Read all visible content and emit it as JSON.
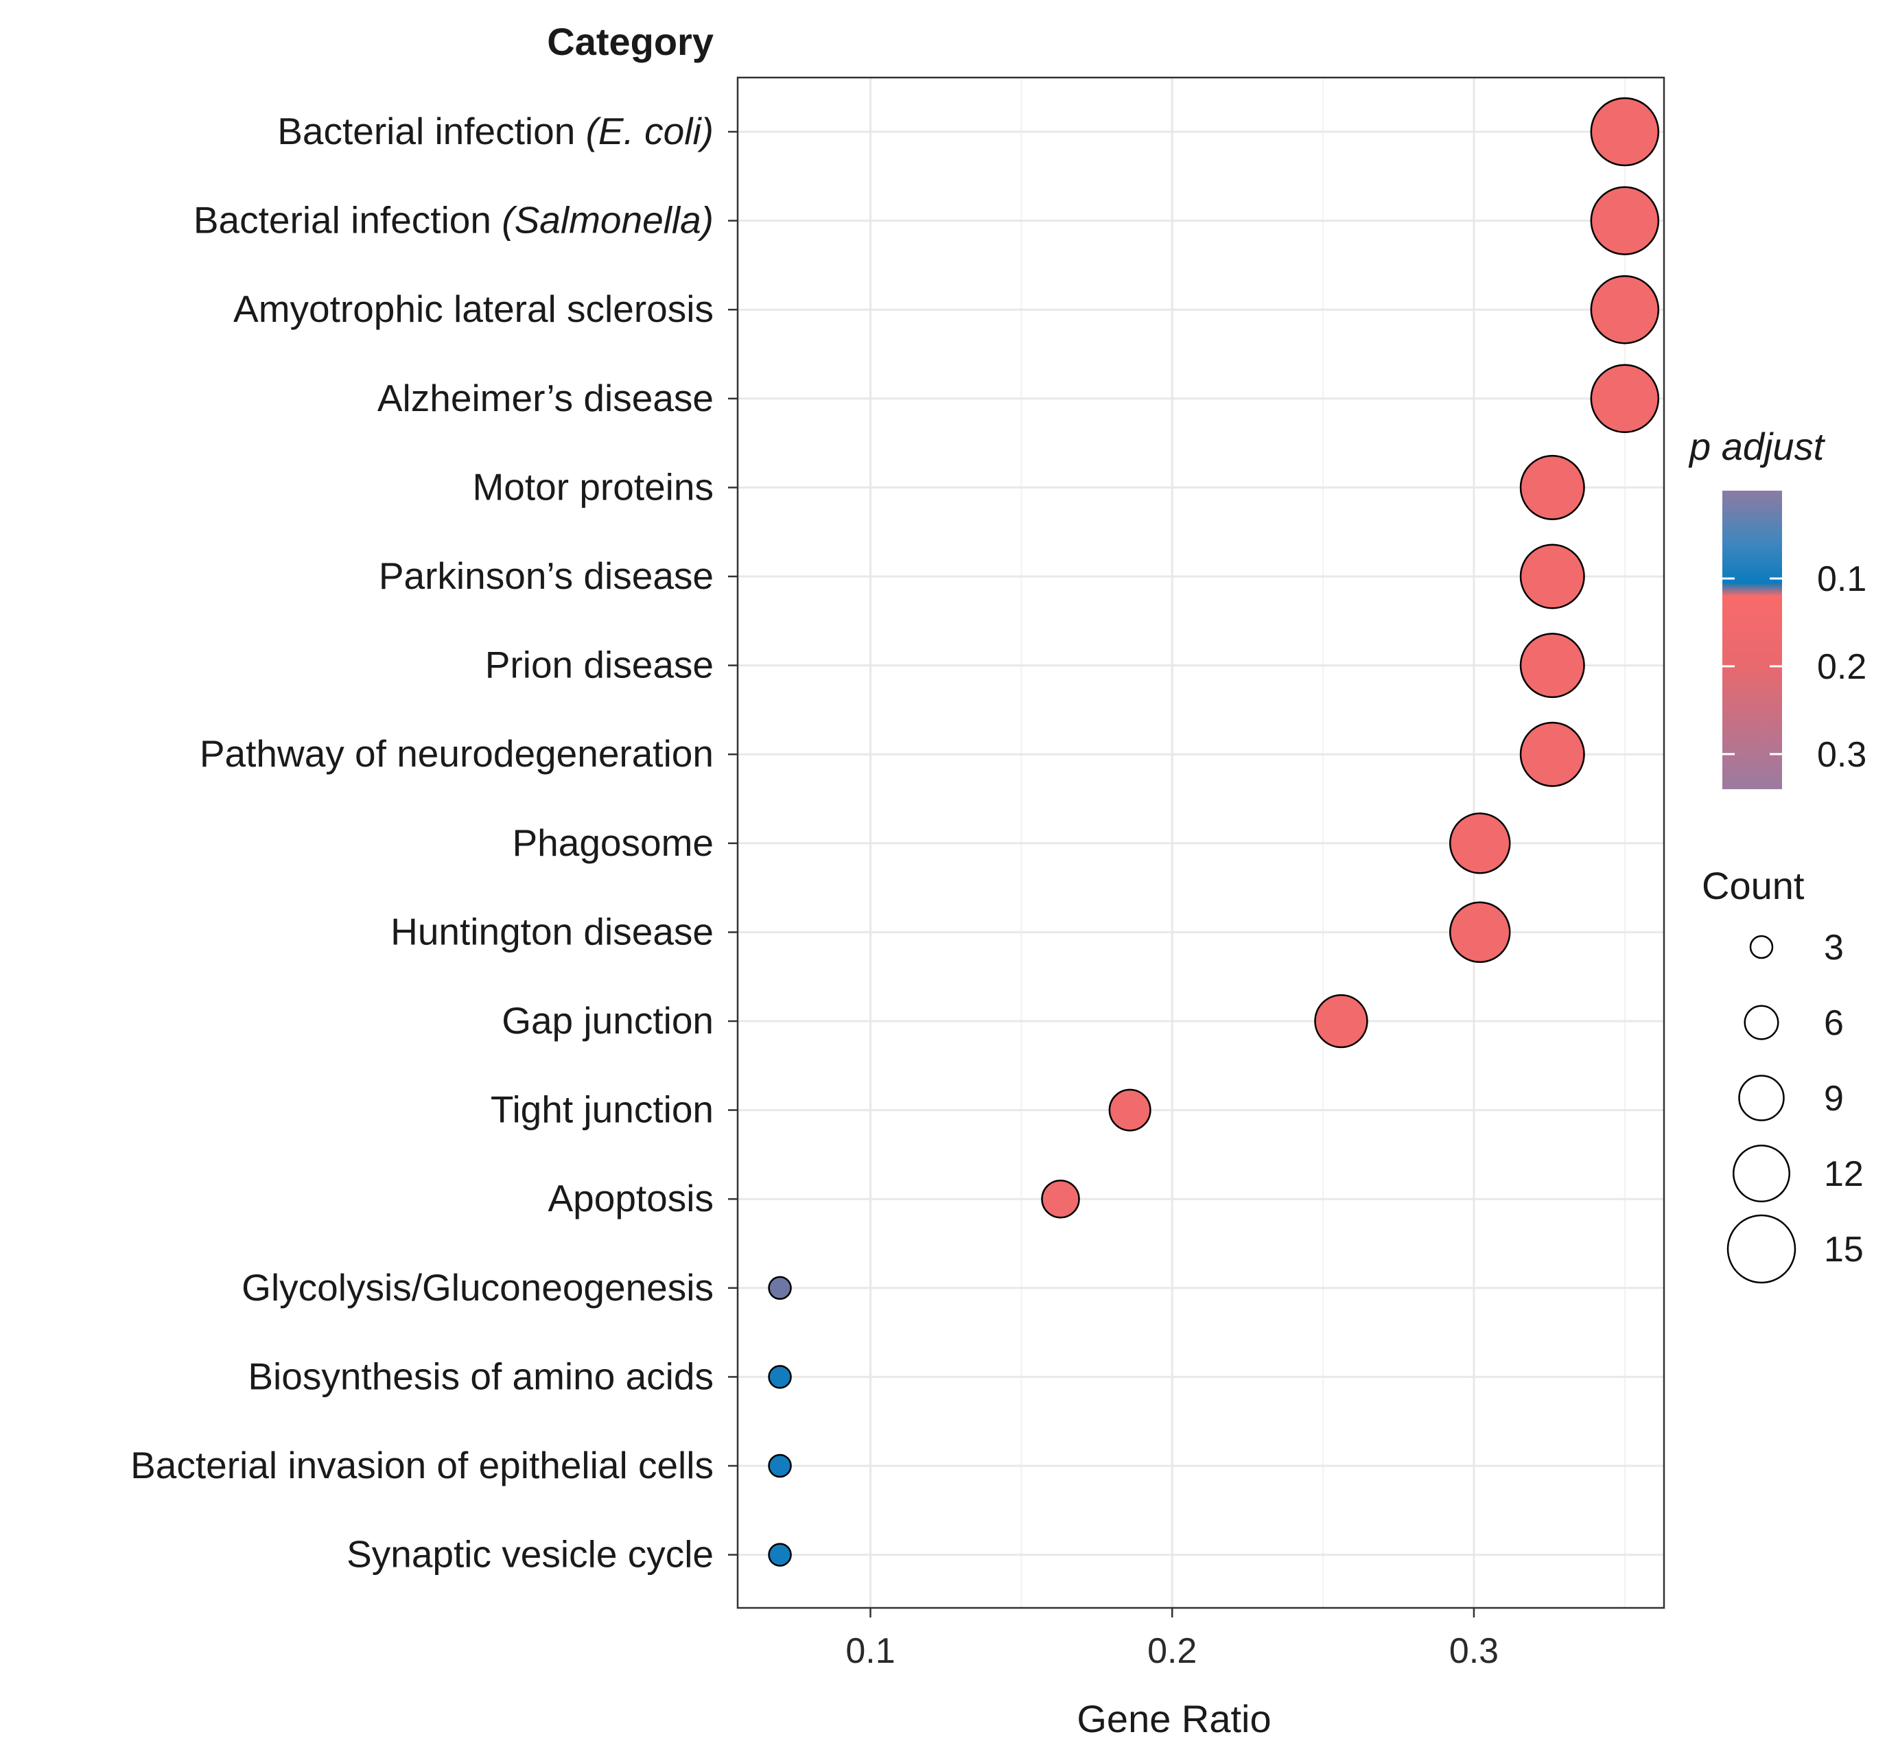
{
  "chart_data": {
    "type": "scatter",
    "subtype": "dot-plot",
    "y_title": "Category",
    "xlabel": "Gene Ratio",
    "xlim": [
      0.056,
      0.363
    ],
    "xticks": [
      0.1,
      0.2,
      0.3
    ],
    "xtick_labels": [
      "0.1",
      "0.2",
      "0.3"
    ],
    "grid": true,
    "legend_position": "right",
    "points": [
      {
        "category": "Bacterial infection",
        "italic_suffix": "(E. coli)",
        "gene_ratio": 0.35,
        "count": 15,
        "p_adjust": 0.16
      },
      {
        "category": "Bacterial infection",
        "italic_suffix": "(Salmonella)",
        "gene_ratio": 0.35,
        "count": 15,
        "p_adjust": 0.16
      },
      {
        "category": "Amyotrophic lateral sclerosis",
        "italic_suffix": "",
        "gene_ratio": 0.35,
        "count": 15,
        "p_adjust": 0.16
      },
      {
        "category": "Alzheimer’s disease",
        "italic_suffix": "",
        "gene_ratio": 0.35,
        "count": 15,
        "p_adjust": 0.16
      },
      {
        "category": "Motor proteins",
        "italic_suffix": "",
        "gene_ratio": 0.326,
        "count": 14,
        "p_adjust": 0.16
      },
      {
        "category": "Parkinson’s disease",
        "italic_suffix": "",
        "gene_ratio": 0.326,
        "count": 14,
        "p_adjust": 0.16
      },
      {
        "category": "Prion disease",
        "italic_suffix": "",
        "gene_ratio": 0.326,
        "count": 14,
        "p_adjust": 0.16
      },
      {
        "category": "Pathway of neurodegeneration",
        "italic_suffix": "",
        "gene_ratio": 0.326,
        "count": 14,
        "p_adjust": 0.16
      },
      {
        "category": "Phagosome",
        "italic_suffix": "",
        "gene_ratio": 0.302,
        "count": 13,
        "p_adjust": 0.16
      },
      {
        "category": "Huntington disease",
        "italic_suffix": "",
        "gene_ratio": 0.302,
        "count": 13,
        "p_adjust": 0.16
      },
      {
        "category": "Gap junction",
        "italic_suffix": "",
        "gene_ratio": 0.256,
        "count": 11,
        "p_adjust": 0.16
      },
      {
        "category": "Tight junction",
        "italic_suffix": "",
        "gene_ratio": 0.186,
        "count": 8,
        "p_adjust": 0.16
      },
      {
        "category": "Apoptosis",
        "italic_suffix": "",
        "gene_ratio": 0.163,
        "count": 7,
        "p_adjust": 0.16
      },
      {
        "category": "Glycolysis/Gluconeogenesis",
        "italic_suffix": "",
        "gene_ratio": 0.07,
        "count": 3,
        "p_adjust": 0.03
      },
      {
        "category": "Biosynthesis of amino acids",
        "italic_suffix": "",
        "gene_ratio": 0.07,
        "count": 3,
        "p_adjust": 0.1
      },
      {
        "category": "Bacterial invasion of epithelial cells",
        "italic_suffix": "",
        "gene_ratio": 0.07,
        "count": 3,
        "p_adjust": 0.1
      },
      {
        "category": "Synaptic vesicle cycle",
        "italic_suffix": "",
        "gene_ratio": 0.07,
        "count": 3,
        "p_adjust": 0.1
      }
    ],
    "color_legend": {
      "title": "p adjust",
      "ticks": [
        0.1,
        0.2,
        0.3
      ],
      "tick_labels": [
        "0.1",
        "0.2",
        "0.3"
      ],
      "range": [
        0.0,
        0.34
      ],
      "stops": [
        {
          "value": 0.0,
          "color": "#8C7BA3"
        },
        {
          "value": 0.06,
          "color": "#3E87BE"
        },
        {
          "value": 0.105,
          "color": "#0C7BBE"
        },
        {
          "value": 0.12,
          "color": "#F96A6A"
        },
        {
          "value": 0.2,
          "color": "#E8696E"
        },
        {
          "value": 0.34,
          "color": "#9B7BA1"
        }
      ]
    },
    "size_legend": {
      "title": "Count",
      "values": [
        3,
        6,
        9,
        12,
        15
      ],
      "labels": [
        "3",
        "6",
        "9",
        "12",
        "15"
      ]
    },
    "colors": {
      "high_p": "#F96A6A",
      "low_p": "#0C7BBE",
      "glycolysis": "#6E77A3",
      "grid": "#E8E8E8",
      "panel_border": "#333333",
      "point_outline": "#000000"
    }
  }
}
